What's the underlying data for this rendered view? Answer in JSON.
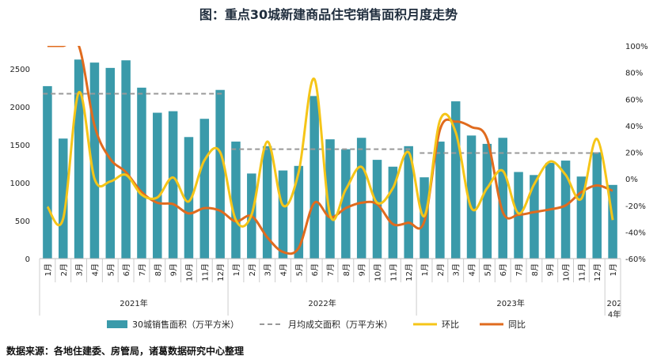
{
  "chart_data": {
    "type": "bar",
    "title": "图：重点30城新建商品住宅销售面积月度走势",
    "source": "数据来源：各地住建委、房管局，诸葛数据研究中心整理",
    "categories": [
      "1月",
      "2月",
      "3月",
      "4月",
      "5月",
      "6月",
      "7月",
      "8月",
      "9月",
      "10月",
      "11月",
      "12月",
      "1月",
      "2月",
      "3月",
      "4月",
      "5月",
      "6月",
      "7月",
      "8月",
      "9月",
      "10月",
      "11月",
      "12月",
      "1月",
      "2月",
      "3月",
      "4月",
      "5月",
      "6月",
      "7月",
      "8月",
      "9月",
      "10月",
      "11月",
      "12月",
      "1月"
    ],
    "year_groups": [
      {
        "label": "2021年",
        "start": 0,
        "end": 11
      },
      {
        "label": "2022年",
        "start": 12,
        "end": 23
      },
      {
        "label": "2023年",
        "start": 24,
        "end": 35
      },
      {
        "label": "2024年",
        "start": 36,
        "end": 36
      }
    ],
    "ylim_left": [
      0,
      2800
    ],
    "yticks_left": [
      0,
      500,
      1000,
      1500,
      2000,
      2500
    ],
    "yticks_left_labels": [
      "0",
      "500",
      "1000",
      "1500",
      "2000",
      "2500"
    ],
    "ylim_right": [
      -60,
      100
    ],
    "yticks_right": [
      -60,
      -40,
      -20,
      0,
      20,
      40,
      60,
      80,
      100
    ],
    "yticks_right_labels": [
      "-60%",
      "-40%",
      "-20%",
      "0%",
      "20%",
      "40%",
      "60%",
      "80%",
      "100%"
    ],
    "series": [
      {
        "name": "30城销售面积（万平方米）",
        "type": "bar",
        "axis": "left",
        "color": "#3a9aaa",
        "values": [
          2270,
          1580,
          2620,
          2580,
          2510,
          2610,
          2250,
          1920,
          1940,
          1600,
          1840,
          2220,
          1540,
          1120,
          1480,
          1160,
          1220,
          2140,
          1570,
          1440,
          1590,
          1300,
          1210,
          1480,
          1070,
          1540,
          2070,
          1620,
          1510,
          1590,
          1140,
          1100,
          1260,
          1290,
          1080,
          1400,
          970
        ]
      },
      {
        "name": "月均成交面积（万平方米）",
        "type": "dashed",
        "axis": "left",
        "color": "#999999",
        "segments": [
          {
            "start": 0,
            "end": 11,
            "value": 2170
          },
          {
            "start": 12,
            "end": 23,
            "value": 1440
          },
          {
            "start": 24,
            "end": 35,
            "value": 1390
          }
        ]
      },
      {
        "name": "环比",
        "type": "line",
        "axis": "right",
        "color": "#f5c518",
        "values": [
          -21,
          -30,
          65,
          0,
          -2,
          3,
          -12,
          -14,
          1,
          -17,
          14,
          20,
          -31,
          -27,
          28,
          -20,
          5,
          75,
          -27,
          -8,
          9,
          -18,
          -7,
          20,
          -28,
          44,
          35,
          -22,
          -7,
          6,
          -26,
          -4,
          13,
          3,
          -15,
          30,
          -31
        ]
      },
      {
        "name": "同比",
        "type": "line",
        "axis": "right",
        "color": "#e06b1e",
        "values": [
          100,
          100,
          100,
          40,
          15,
          5,
          -10,
          -18,
          -19,
          -26,
          -22,
          -24,
          -32,
          -28,
          -44,
          -55,
          -52,
          -18,
          -29,
          -22,
          -18,
          -19,
          -34,
          -33,
          -32,
          37,
          43,
          39,
          30,
          -25,
          -27,
          -25,
          -23,
          -20,
          -10,
          -5,
          -9
        ]
      }
    ],
    "legend_position": "bottom",
    "grid": false
  }
}
